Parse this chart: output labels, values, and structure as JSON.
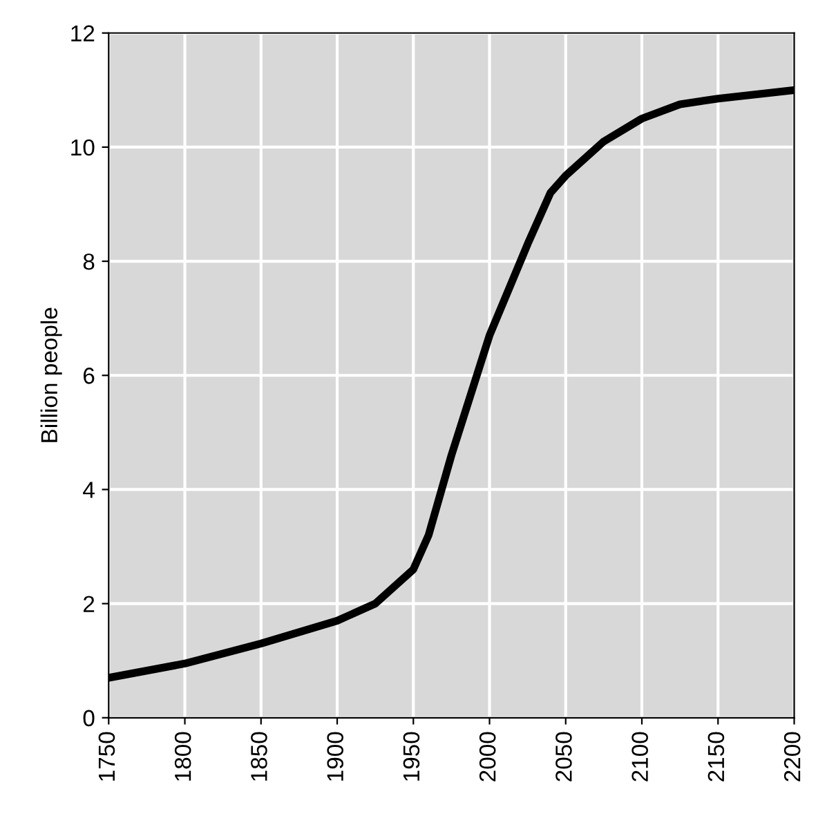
{
  "chart_data": {
    "type": "line",
    "ylabel": "Billion people",
    "x": [
      1750,
      1800,
      1850,
      1900,
      1925,
      1950,
      1960,
      1975,
      2000,
      2025,
      2040,
      2050,
      2075,
      2100,
      2125,
      2150,
      2200
    ],
    "series": [
      {
        "color": "#000000",
        "values": [
          0.7,
          0.95,
          1.3,
          1.7,
          2.0,
          2.6,
          3.2,
          4.6,
          6.7,
          8.3,
          9.2,
          9.5,
          10.1,
          10.5,
          10.75,
          10.85,
          11.0
        ]
      }
    ],
    "xlim": [
      1750,
      2200
    ],
    "xticks": [
      1750,
      1800,
      1850,
      1900,
      1950,
      2000,
      2050,
      2100,
      2150,
      2200
    ],
    "ylim": [
      0,
      12
    ],
    "yticks": [
      0,
      2,
      4,
      6,
      8,
      10,
      12
    ],
    "grid": true
  }
}
